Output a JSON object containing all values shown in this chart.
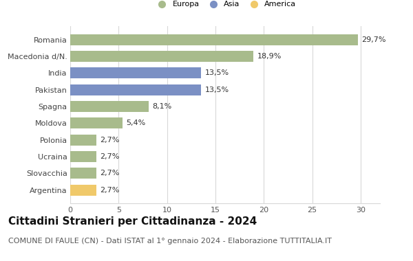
{
  "categories": [
    "Argentina",
    "Slovacchia",
    "Ucraina",
    "Polonia",
    "Moldova",
    "Spagna",
    "Pakistan",
    "India",
    "Macedonia d/N.",
    "Romania"
  ],
  "values": [
    2.7,
    2.7,
    2.7,
    2.7,
    5.4,
    8.1,
    13.5,
    13.5,
    18.9,
    29.7
  ],
  "continents": [
    "America",
    "Europa",
    "Europa",
    "Europa",
    "Europa",
    "Europa",
    "Asia",
    "Asia",
    "Europa",
    "Europa"
  ],
  "bar_colors": [
    "#f0c96a",
    "#a8bb8c",
    "#a8bb8c",
    "#a8bb8c",
    "#a8bb8c",
    "#a8bb8c",
    "#7b90c4",
    "#7b90c4",
    "#a8bb8c",
    "#a8bb8c"
  ],
  "labels": [
    "2,7%",
    "2,7%",
    "2,7%",
    "2,7%",
    "5,4%",
    "8,1%",
    "13,5%",
    "13,5%",
    "18,9%",
    "29,7%"
  ],
  "xlim": [
    0,
    32
  ],
  "xticks": [
    0,
    5,
    10,
    15,
    20,
    25,
    30
  ],
  "title": "Cittadini Stranieri per Cittadinanza - 2024",
  "subtitle": "COMUNE DI FAULE (CN) - Dati ISTAT al 1° gennaio 2024 - Elaborazione TUTTITALIA.IT",
  "legend_labels": [
    "Europa",
    "Asia",
    "America"
  ],
  "legend_colors": [
    "#a8bb8c",
    "#7b90c4",
    "#f0c96a"
  ],
  "bg_color": "#ffffff",
  "grid_color": "#d8d8d8",
  "title_fontsize": 11,
  "subtitle_fontsize": 8,
  "label_fontsize": 8,
  "tick_fontsize": 8,
  "bar_height": 0.65
}
